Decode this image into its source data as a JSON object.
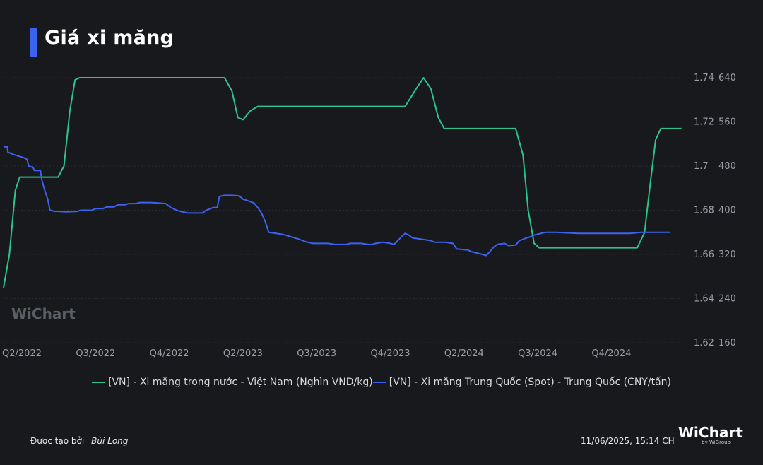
{
  "title": "Giá xi măng",
  "watermark": "WiChart",
  "legend": [
    {
      "label": "[VN] - Xi măng trong nước - Việt Nam (Nghìn VND/kg)",
      "color": "#2ec38b"
    },
    {
      "label": "[VN] - Xi măng Trung Quốc (Spot) - Trung Quốc (CNY/tấn)",
      "color": "#3c62f0"
    }
  ],
  "footer": {
    "created_by_label": "Được tạo bởi",
    "author": "Bùi Long",
    "timestamp": "11/06/2025, 15:14 CH"
  },
  "logo": {
    "name": "WiChart",
    "sub": "by WiGroup"
  },
  "chart_data": {
    "type": "line",
    "title": "Giá xi măng",
    "x_axis": {
      "ticks": [
        "Q2/2022",
        "Q3/2022",
        "Q4/2022",
        "Q2/2023",
        "Q3/2023",
        "Q4/2023",
        "Q2/2024",
        "Q3/2024",
        "Q4/2024"
      ],
      "tick_positions": [
        0.0,
        1.0,
        2.0,
        3.0,
        4.0,
        5.0,
        6.0,
        7.0,
        8.0
      ],
      "range": [
        0.0,
        9.2
      ]
    },
    "y_axis_left": {
      "ticks": [
        "1.74",
        "1.72",
        "1.7",
        "1.68",
        "1.66",
        "1.64",
        "1.62"
      ],
      "range": [
        1.62,
        1.74
      ]
    },
    "y_axis_right": {
      "ticks": [
        "640",
        "560",
        "480",
        "400",
        "320",
        "240",
        "160"
      ],
      "range": [
        160,
        640
      ]
    },
    "grid": true,
    "series": [
      {
        "name": "[VN] - Xi măng trong nước - Việt Nam (Nghìn VND/kg)",
        "axis": "left",
        "color": "#2ec38b",
        "points": [
          [
            0.0,
            1.645
          ],
          [
            0.08,
            1.66
          ],
          [
            0.16,
            1.689
          ],
          [
            0.22,
            1.695
          ],
          [
            0.74,
            1.695
          ],
          [
            0.82,
            1.7
          ],
          [
            0.9,
            1.725
          ],
          [
            0.97,
            1.739
          ],
          [
            1.03,
            1.74
          ],
          [
            3.0,
            1.74
          ],
          [
            3.1,
            1.734
          ],
          [
            3.18,
            1.722
          ],
          [
            3.25,
            1.721
          ],
          [
            3.35,
            1.725
          ],
          [
            3.45,
            1.727
          ],
          [
            5.45,
            1.727
          ],
          [
            5.6,
            1.735
          ],
          [
            5.7,
            1.74
          ],
          [
            5.8,
            1.735
          ],
          [
            5.9,
            1.722
          ],
          [
            5.98,
            1.717
          ],
          [
            6.05,
            1.717
          ],
          [
            6.95,
            1.717
          ],
          [
            7.05,
            1.705
          ],
          [
            7.12,
            1.68
          ],
          [
            7.2,
            1.665
          ],
          [
            7.27,
            1.663
          ],
          [
            8.6,
            1.663
          ],
          [
            8.7,
            1.67
          ],
          [
            8.78,
            1.693
          ],
          [
            8.85,
            1.712
          ],
          [
            8.92,
            1.717
          ],
          [
            9.2,
            1.717
          ]
        ]
      },
      {
        "name": "[VN] - Xi măng Trung Quốc (Spot) - Trung Quốc (CNY/tấn)",
        "axis": "right",
        "color": "#3c62f0",
        "points": [
          [
            0.0,
            515
          ],
          [
            0.05,
            515
          ],
          [
            0.06,
            505
          ],
          [
            0.1,
            503
          ],
          [
            0.13,
            501
          ],
          [
            0.18,
            499
          ],
          [
            0.23,
            497
          ],
          [
            0.28,
            495
          ],
          [
            0.32,
            492
          ],
          [
            0.34,
            480
          ],
          [
            0.4,
            478
          ],
          [
            0.42,
            472
          ],
          [
            0.5,
            472
          ],
          [
            0.52,
            455
          ],
          [
            0.55,
            440
          ],
          [
            0.6,
            420
          ],
          [
            0.63,
            400
          ],
          [
            0.7,
            398
          ],
          [
            0.75,
            398
          ],
          [
            0.85,
            397
          ],
          [
            1.0,
            398
          ],
          [
            1.05,
            400
          ],
          [
            1.2,
            400
          ],
          [
            1.25,
            403
          ],
          [
            1.35,
            403
          ],
          [
            1.4,
            406
          ],
          [
            1.5,
            406
          ],
          [
            1.55,
            410
          ],
          [
            1.65,
            410
          ],
          [
            1.7,
            412
          ],
          [
            1.8,
            412
          ],
          [
            1.85,
            414
          ],
          [
            2.0,
            414
          ],
          [
            2.1,
            413
          ],
          [
            2.2,
            412
          ],
          [
            2.27,
            405
          ],
          [
            2.35,
            400
          ],
          [
            2.4,
            398
          ],
          [
            2.5,
            395
          ],
          [
            2.55,
            395
          ],
          [
            2.7,
            395
          ],
          [
            2.75,
            400
          ],
          [
            2.85,
            405
          ],
          [
            2.9,
            405
          ],
          [
            2.93,
            425
          ],
          [
            3.0,
            427
          ],
          [
            3.1,
            427
          ],
          [
            3.2,
            426
          ],
          [
            3.25,
            420
          ],
          [
            3.3,
            418
          ],
          [
            3.4,
            413
          ],
          [
            3.45,
            405
          ],
          [
            3.5,
            395
          ],
          [
            3.55,
            380
          ],
          [
            3.6,
            360
          ],
          [
            3.7,
            358
          ],
          [
            3.8,
            356
          ],
          [
            3.9,
            352
          ],
          [
            4.0,
            348
          ],
          [
            4.1,
            343
          ],
          [
            4.2,
            340
          ],
          [
            4.4,
            340
          ],
          [
            4.5,
            338
          ],
          [
            4.65,
            338
          ],
          [
            4.7,
            340
          ],
          [
            4.85,
            340
          ],
          [
            4.95,
            338
          ],
          [
            5.0,
            338
          ],
          [
            5.05,
            340
          ],
          [
            5.15,
            342
          ],
          [
            5.25,
            340
          ],
          [
            5.3,
            338
          ],
          [
            5.35,
            345
          ],
          [
            5.4,
            352
          ],
          [
            5.45,
            358
          ],
          [
            5.5,
            355
          ],
          [
            5.55,
            350
          ],
          [
            5.7,
            347
          ],
          [
            5.8,
            345
          ],
          [
            5.85,
            342
          ],
          [
            6.0,
            342
          ],
          [
            6.1,
            340
          ],
          [
            6.15,
            330
          ],
          [
            6.3,
            328
          ],
          [
            6.35,
            325
          ],
          [
            6.5,
            320
          ],
          [
            6.55,
            318
          ],
          [
            6.6,
            325
          ],
          [
            6.65,
            333
          ],
          [
            6.7,
            338
          ],
          [
            6.8,
            340
          ],
          [
            6.85,
            336
          ],
          [
            6.95,
            337
          ],
          [
            7.0,
            345
          ],
          [
            7.1,
            350
          ],
          [
            7.15,
            352
          ],
          [
            7.2,
            355
          ],
          [
            7.35,
            360
          ],
          [
            7.5,
            360
          ],
          [
            7.8,
            358
          ],
          [
            8.0,
            358
          ],
          [
            8.35,
            358
          ],
          [
            8.5,
            358
          ],
          [
            8.65,
            360
          ],
          [
            9.0,
            360
          ],
          [
            9.05,
            360
          ]
        ]
      }
    ]
  }
}
